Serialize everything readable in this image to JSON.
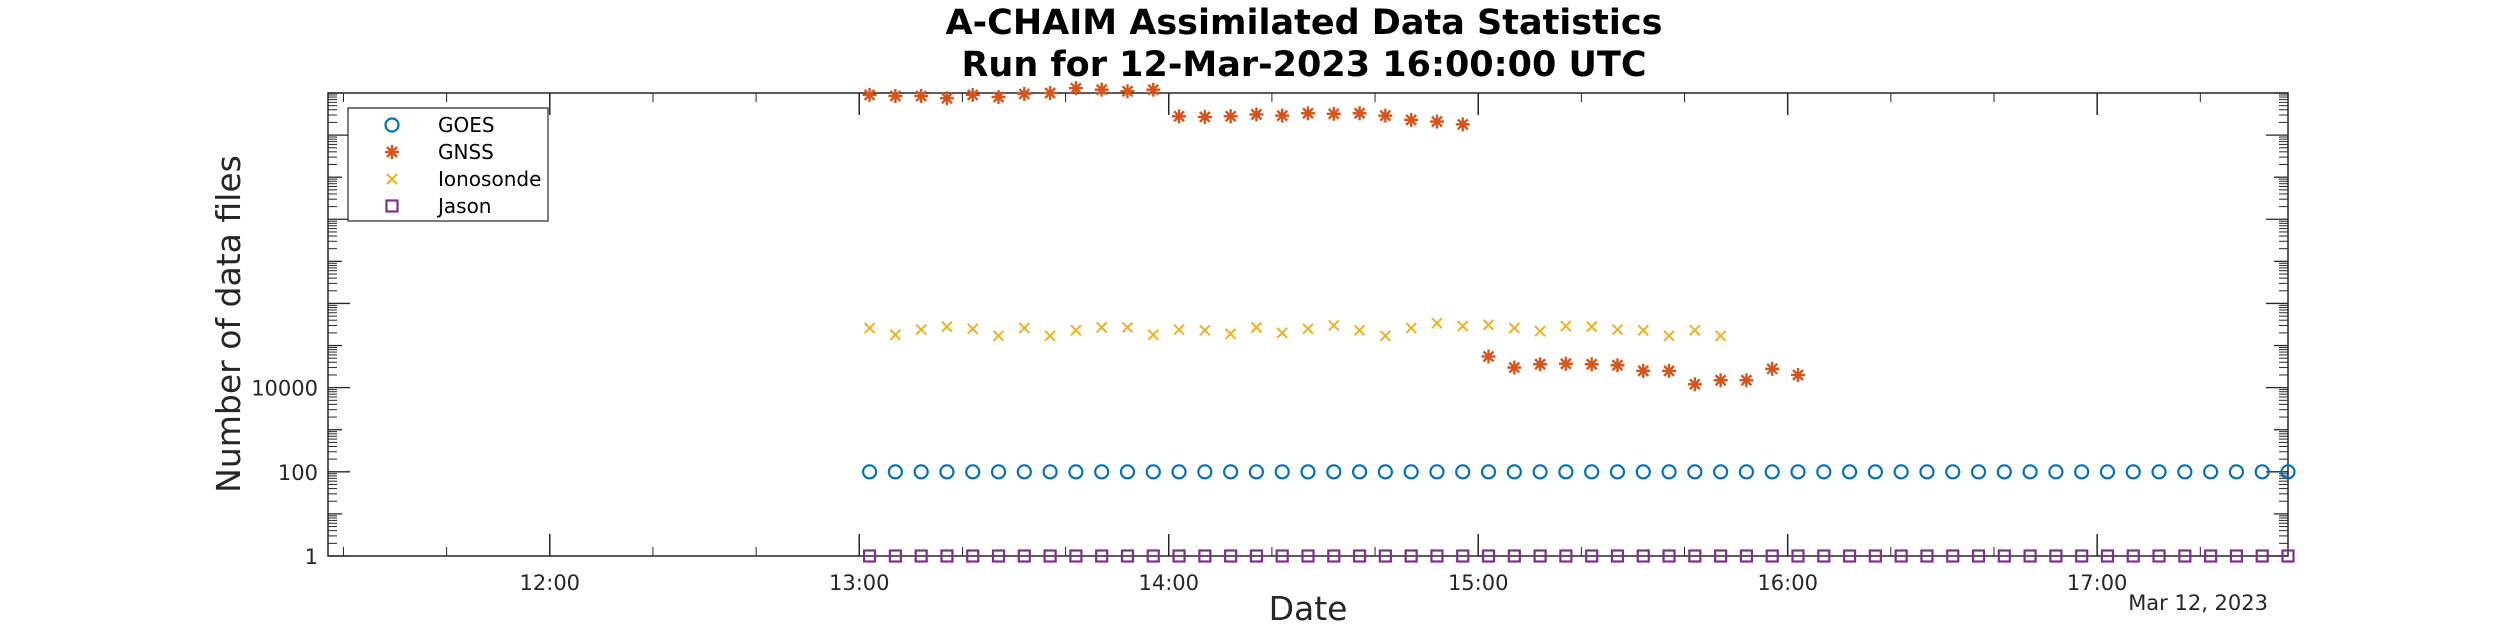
{
  "chart_data": {
    "type": "scatter",
    "title": [
      "A-CHAIM Assimilated Data Statistics",
      "Run for 12-Mar-2023 16:00:00 UTC"
    ],
    "xlabel": "Date",
    "ylabel": "Number of data files",
    "x_axis_type": "time",
    "x_tick_labels": [
      "12:00",
      "13:00",
      "14:00",
      "15:00",
      "16:00",
      "17:00"
    ],
    "x_axis_date_label": "Mar 12, 2023",
    "xlim": [
      "2023-03-12 11:17",
      "2023-03-12 17:37"
    ],
    "y_scale": "log",
    "y_tick_labels": [
      "1",
      "100",
      "10000"
    ],
    "ylim": [
      1,
      100000000000
    ],
    "grid": false,
    "legend_position": "top-left",
    "series": [
      {
        "name": "GOES",
        "marker": "circle",
        "color": "#0072BD",
        "x": [
          "13:02",
          "13:07",
          "13:12",
          "13:17",
          "13:22",
          "13:27",
          "13:32",
          "13:37",
          "13:42",
          "13:47",
          "13:52",
          "13:57",
          "14:02",
          "14:07",
          "14:12",
          "14:17",
          "14:22",
          "14:27",
          "14:32",
          "14:37",
          "14:42",
          "14:47",
          "14:52",
          "14:57",
          "15:02",
          "15:07",
          "15:12",
          "15:17",
          "15:22",
          "15:27",
          "15:32",
          "15:37",
          "15:42",
          "15:47",
          "15:52",
          "15:57",
          "16:02",
          "16:07",
          "16:12",
          "16:17",
          "16:22",
          "16:27",
          "16:32",
          "16:37",
          "16:42",
          "16:47",
          "16:52",
          "16:57",
          "17:02",
          "17:07",
          "17:12",
          "17:17",
          "17:22",
          "17:27",
          "17:32",
          "17:37"
        ],
        "y": [
          100,
          100,
          100,
          100,
          100,
          100,
          100,
          100,
          100,
          100,
          100,
          100,
          100,
          100,
          100,
          100,
          100,
          100,
          100,
          100,
          100,
          100,
          100,
          100,
          100,
          100,
          100,
          100,
          100,
          100,
          100,
          100,
          100,
          100,
          100,
          100,
          100,
          100,
          100,
          100,
          100,
          100,
          100,
          100,
          100,
          100,
          100,
          100,
          100,
          100,
          100,
          100,
          100,
          100,
          100,
          100
        ]
      },
      {
        "name": "GNSS",
        "marker": "asterisk",
        "color": "#D95319",
        "x": [
          "13:02",
          "13:07",
          "13:12",
          "13:17",
          "13:22",
          "13:27",
          "13:32",
          "13:37",
          "13:42",
          "13:47",
          "13:52",
          "13:57",
          "14:02",
          "14:07",
          "14:12",
          "14:17",
          "14:22",
          "14:27",
          "14:32",
          "14:37",
          "14:42",
          "14:47",
          "14:52",
          "14:57",
          "15:02",
          "15:07",
          "15:12",
          "15:17",
          "15:22",
          "15:27",
          "15:32",
          "15:37",
          "15:42",
          "15:47",
          "15:52",
          "15:57",
          "16:02"
        ],
        "y": [
          90000000000.0,
          85000000000.0,
          85000000000.0,
          75000000000.0,
          90000000000.0,
          80000000000.0,
          95000000000.0,
          100000000000.0,
          130000000000.0,
          120000000000.0,
          110000000000.0,
          120000000000.0,
          28000000000.0,
          27000000000.0,
          28000000000.0,
          31000000000.0,
          29000000000.0,
          33000000000.0,
          32000000000.0,
          33000000000.0,
          29000000000.0,
          23000000000.0,
          21000000000.0,
          18000000000.0,
          55000,
          30000,
          36000,
          37000,
          36000,
          34000,
          25000,
          25000,
          12000,
          15000,
          15000,
          28000,
          20000
        ]
      },
      {
        "name": "Ionosonde",
        "marker": "x",
        "color": "#EDB120",
        "x": [
          "13:02",
          "13:07",
          "13:12",
          "13:17",
          "13:22",
          "13:27",
          "13:32",
          "13:37",
          "13:42",
          "13:47",
          "13:52",
          "13:57",
          "14:02",
          "14:07",
          "14:12",
          "14:17",
          "14:22",
          "14:27",
          "14:32",
          "14:37",
          "14:42",
          "14:47",
          "14:52",
          "14:57",
          "15:02",
          "15:07",
          "15:12",
          "15:17",
          "15:22",
          "15:27",
          "15:32",
          "15:37",
          "15:42",
          "15:47"
        ],
        "y": [
          260000,
          180000,
          240000,
          280000,
          250000,
          170000,
          260000,
          170000,
          230000,
          270000,
          270000,
          180000,
          240000,
          230000,
          190000,
          270000,
          200000,
          250000,
          300000,
          230000,
          170000,
          260000,
          340000,
          290000,
          310000,
          260000,
          220000,
          290000,
          280000,
          240000,
          230000,
          170000,
          230000,
          170000
        ]
      },
      {
        "name": "Jason",
        "marker": "square",
        "color": "#7E2F8E",
        "x": [
          "13:02",
          "13:07",
          "13:12",
          "13:17",
          "13:22",
          "13:27",
          "13:32",
          "13:37",
          "13:42",
          "13:47",
          "13:52",
          "13:57",
          "14:02",
          "14:07",
          "14:12",
          "14:17",
          "14:22",
          "14:27",
          "14:32",
          "14:37",
          "14:42",
          "14:47",
          "14:52",
          "14:57",
          "15:02",
          "15:07",
          "15:12",
          "15:17",
          "15:22",
          "15:27",
          "15:32",
          "15:37",
          "15:42",
          "15:47",
          "15:52",
          "15:57",
          "16:02",
          "16:07",
          "16:12",
          "16:17",
          "16:22",
          "16:27",
          "16:32",
          "16:37",
          "16:42",
          "16:47",
          "16:52",
          "16:57",
          "17:02",
          "17:07",
          "17:12",
          "17:17",
          "17:22",
          "17:27",
          "17:32",
          "17:37"
        ],
        "y": [
          1,
          1,
          1,
          1,
          1,
          1,
          1,
          1,
          1,
          1,
          1,
          1,
          1,
          1,
          1,
          1,
          1,
          1,
          1,
          1,
          1,
          1,
          1,
          1,
          1,
          1,
          1,
          1,
          1,
          1,
          1,
          1,
          1,
          1,
          1,
          1,
          1,
          1,
          1,
          1,
          1,
          1,
          1,
          1,
          1,
          1,
          1,
          1,
          1,
          1,
          1,
          1,
          1,
          1,
          1,
          1
        ]
      }
    ]
  }
}
